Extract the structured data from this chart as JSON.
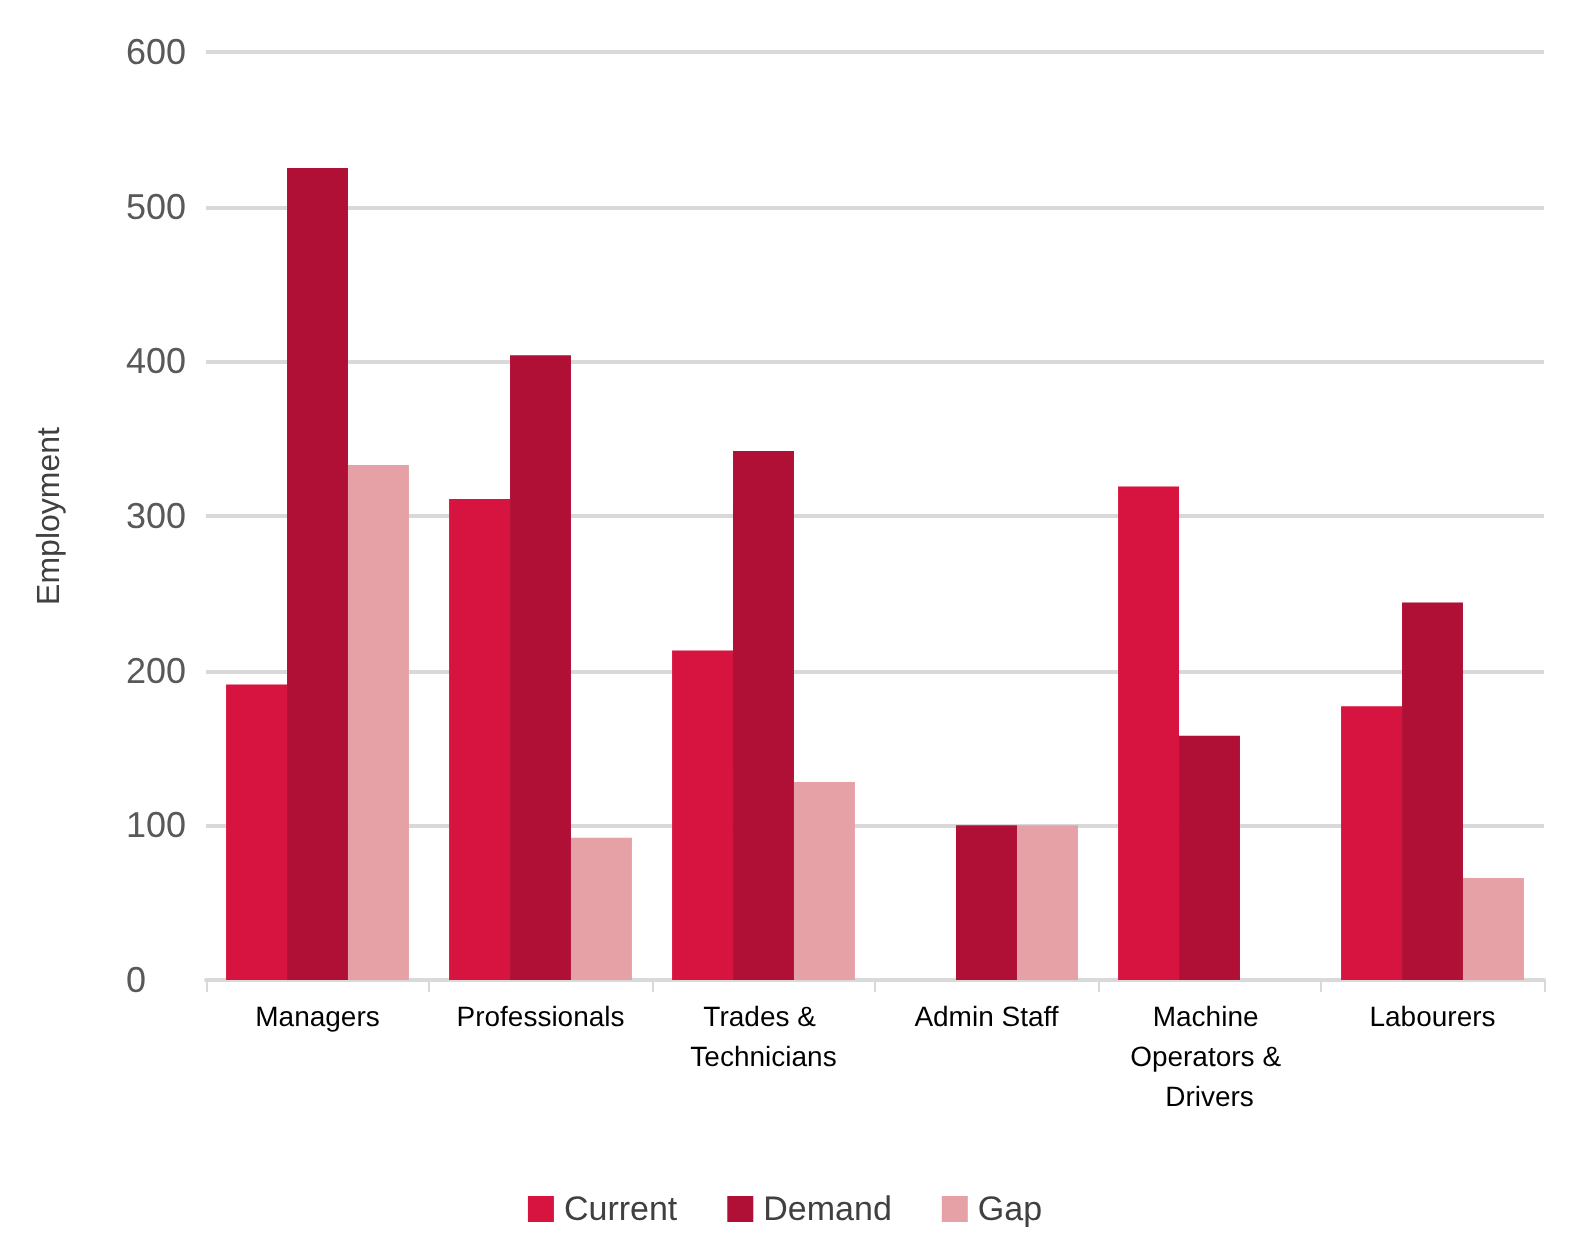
{
  "chart_data": {
    "type": "bar",
    "ylabel": "Employment",
    "categories": [
      "Managers",
      "Professionals",
      "Trades & Technicians",
      "Admin Staff",
      "Machine Operators & Drivers",
      "Labourers"
    ],
    "series": [
      {
        "name": "Current",
        "color": "#d7143f",
        "values": [
          191,
          311,
          213,
          null,
          319,
          177
        ]
      },
      {
        "name": "Demand",
        "color": "#b01036",
        "values": [
          525,
          404,
          342,
          100,
          158,
          244
        ]
      },
      {
        "name": "Gap",
        "color": "#e5a1a6",
        "values": [
          333,
          92,
          128,
          100,
          null,
          66
        ]
      }
    ],
    "ylim": [
      0,
      600
    ],
    "yticks": [
      0,
      100,
      200,
      300,
      400,
      500,
      600
    ],
    "grid": "y",
    "legend": "bottom"
  }
}
